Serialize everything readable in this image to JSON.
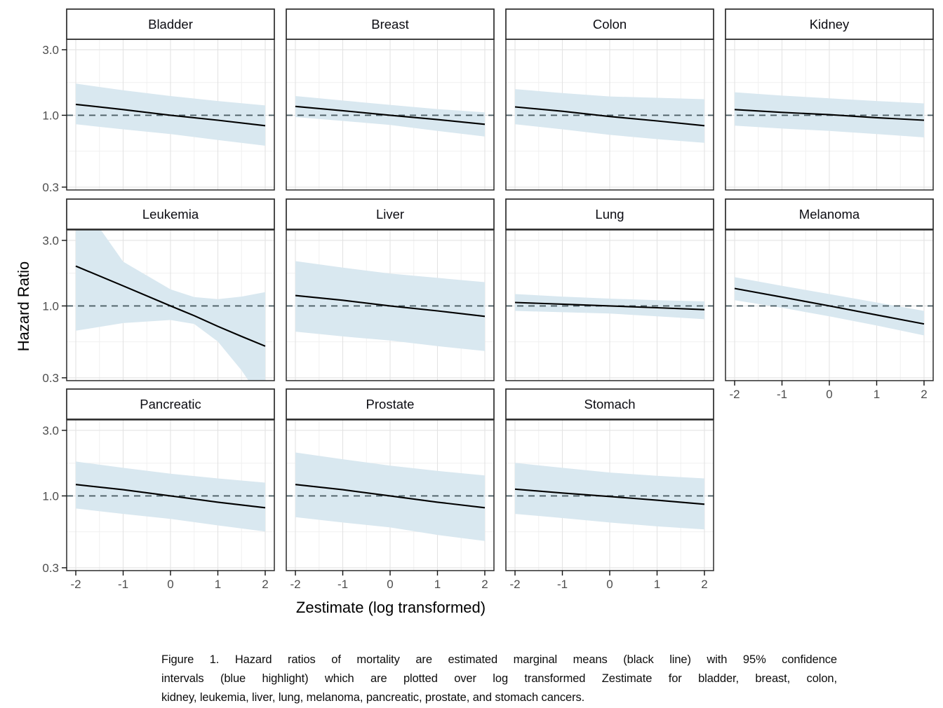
{
  "caption": {
    "lines": [
      "Figure 1. Hazard ratios of mortality are estimated marginal means (black line) with 95% confidence",
      "intervals (blue highlight) which are plotted over log transformed Zestimate for bladder, breast, colon,",
      "kidney, leukemia, liver, lung, melanoma, pancreatic, prostate, and stomach cancers."
    ]
  },
  "chart_data": {
    "type": "line",
    "subtype": "faceted line with 95% confidence ribbon",
    "title": "",
    "xlabel": "Zestimate (log transformed)",
    "ylabel": "Hazard Ratio",
    "x_ticks": [
      -2,
      -1,
      0,
      1,
      2
    ],
    "x_tick_labels": [
      "-2",
      "-1",
      "0",
      "1",
      "2"
    ],
    "y_ticks": [
      3.0,
      1.0,
      0.3
    ],
    "y_tick_labels": [
      "3.0",
      "1.0",
      "0.3"
    ],
    "x_minor_gridlines": [
      -1.5,
      -0.5,
      0.5,
      1.5
    ],
    "y_minor_gridlines": [
      1.732,
      0.548
    ],
    "x_range": [
      -2.193,
      2.193
    ],
    "y_range": [
      0.286,
      3.575
    ],
    "y_scale": "log10",
    "reference_line_y": 1.0,
    "grid": true,
    "legend_position": "none",
    "colors": {
      "mean_line": "#000000",
      "ci_fill": "#d9e8f0",
      "reference_line": "#4d5f66",
      "grid_major": "#e3e3e3",
      "grid_minor": "#f0f0f0",
      "axis_text": "#4d4d4d",
      "panel_border": "#2b2b2b"
    },
    "facets": [
      {
        "name": "Bladder",
        "row": 0,
        "col": 0,
        "y_axis": true,
        "x_axis": false,
        "x": [
          -2,
          -1,
          0,
          1,
          2
        ],
        "mean": [
          1.2,
          1.1,
          1.0,
          0.92,
          0.84
        ],
        "upper": [
          1.7,
          1.52,
          1.38,
          1.27,
          1.18
        ],
        "lower": [
          0.86,
          0.79,
          0.73,
          0.66,
          0.6
        ]
      },
      {
        "name": "Breast",
        "row": 0,
        "col": 1,
        "y_axis": false,
        "x_axis": false,
        "x": [
          -2,
          -1,
          0,
          1,
          2
        ],
        "mean": [
          1.16,
          1.08,
          1.0,
          0.93,
          0.86
        ],
        "upper": [
          1.38,
          1.28,
          1.19,
          1.11,
          1.05
        ],
        "lower": [
          0.97,
          0.91,
          0.85,
          0.77,
          0.7
        ]
      },
      {
        "name": "Colon",
        "row": 0,
        "col": 2,
        "y_axis": false,
        "x_axis": false,
        "x": [
          -2,
          -1,
          0,
          1,
          2
        ],
        "mean": [
          1.15,
          1.07,
          0.98,
          0.91,
          0.84
        ],
        "upper": [
          1.55,
          1.45,
          1.37,
          1.34,
          1.31
        ],
        "lower": [
          0.86,
          0.79,
          0.72,
          0.67,
          0.63
        ]
      },
      {
        "name": "Kidney",
        "row": 0,
        "col": 3,
        "y_axis": false,
        "x_axis": false,
        "x": [
          -2,
          -1,
          0,
          1,
          2
        ],
        "mean": [
          1.1,
          1.05,
          1.01,
          0.96,
          0.92
        ],
        "upper": [
          1.47,
          1.39,
          1.33,
          1.27,
          1.22
        ],
        "lower": [
          0.84,
          0.8,
          0.77,
          0.73,
          0.69
        ]
      },
      {
        "name": "Leukemia",
        "row": 1,
        "col": 0,
        "y_axis": true,
        "x_axis": false,
        "x": [
          -2,
          -1,
          0,
          0.5,
          1,
          1.5,
          2
        ],
        "mean": [
          1.95,
          1.4,
          1.0,
          0.85,
          0.71,
          0.6,
          0.51
        ],
        "upper": [
          6.5,
          2.1,
          1.32,
          1.16,
          1.12,
          1.17,
          1.26
        ],
        "lower": [
          0.66,
          0.75,
          0.79,
          0.74,
          0.55,
          0.34,
          0.19
        ]
      },
      {
        "name": "Liver",
        "row": 1,
        "col": 1,
        "y_axis": false,
        "x_axis": false,
        "x": [
          -2,
          -1,
          0,
          1,
          2
        ],
        "mean": [
          1.19,
          1.1,
          1.0,
          0.92,
          0.84
        ],
        "upper": [
          2.12,
          1.9,
          1.72,
          1.6,
          1.49
        ],
        "lower": [
          0.65,
          0.6,
          0.56,
          0.51,
          0.47
        ]
      },
      {
        "name": "Lung",
        "row": 1,
        "col": 2,
        "y_axis": false,
        "x_axis": false,
        "x": [
          -2,
          -1,
          0,
          1,
          2
        ],
        "mean": [
          1.06,
          1.03,
          1.0,
          0.97,
          0.94
        ],
        "upper": [
          1.22,
          1.17,
          1.13,
          1.1,
          1.08
        ],
        "lower": [
          0.92,
          0.9,
          0.88,
          0.84,
          0.8
        ]
      },
      {
        "name": "Melanoma",
        "row": 1,
        "col": 3,
        "y_axis": false,
        "x_axis": true,
        "x": [
          -2,
          -1,
          0,
          1,
          2
        ],
        "mean": [
          1.34,
          1.16,
          1.0,
          0.86,
          0.74
        ],
        "upper": [
          1.62,
          1.4,
          1.22,
          1.06,
          0.92
        ],
        "lower": [
          1.1,
          0.97,
          0.84,
          0.72,
          0.61
        ]
      },
      {
        "name": "Pancreatic",
        "row": 2,
        "col": 0,
        "y_axis": true,
        "x_axis": true,
        "x": [
          -2,
          -1,
          0,
          1,
          2
        ],
        "mean": [
          1.21,
          1.11,
          1.0,
          0.9,
          0.82
        ],
        "upper": [
          1.78,
          1.6,
          1.45,
          1.34,
          1.25
        ],
        "lower": [
          0.81,
          0.74,
          0.68,
          0.61,
          0.55
        ]
      },
      {
        "name": "Prostate",
        "row": 2,
        "col": 1,
        "y_axis": false,
        "x_axis": true,
        "x": [
          -2,
          -1,
          0,
          1,
          2
        ],
        "mean": [
          1.21,
          1.11,
          1.0,
          0.9,
          0.82
        ],
        "upper": [
          2.07,
          1.85,
          1.66,
          1.52,
          1.41
        ],
        "lower": [
          0.7,
          0.64,
          0.59,
          0.52,
          0.47
        ]
      },
      {
        "name": "Stomach",
        "row": 2,
        "col": 2,
        "y_axis": false,
        "x_axis": true,
        "x": [
          -2,
          -1,
          0,
          1,
          2
        ],
        "mean": [
          1.12,
          1.05,
          0.99,
          0.93,
          0.87
        ],
        "upper": [
          1.74,
          1.6,
          1.48,
          1.4,
          1.34
        ],
        "lower": [
          0.74,
          0.69,
          0.64,
          0.6,
          0.57
        ]
      }
    ]
  }
}
